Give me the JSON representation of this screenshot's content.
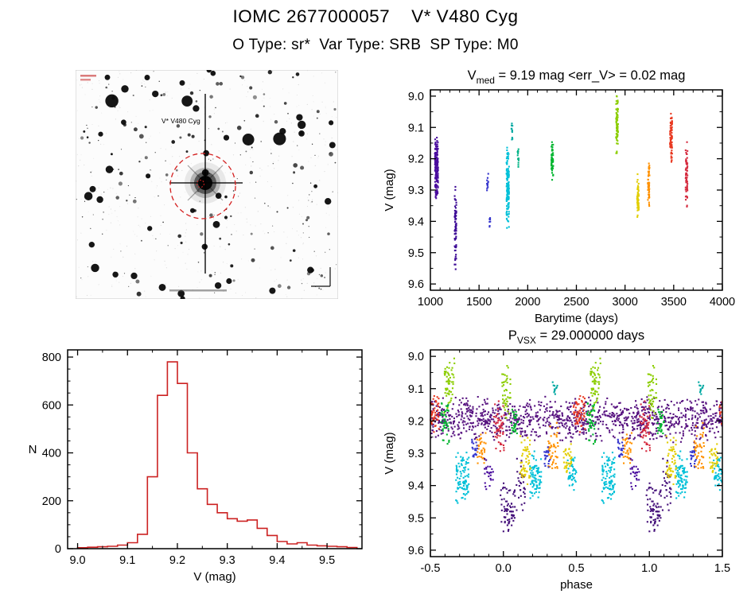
{
  "header": {
    "title": "IOMC 2677000057    V* V480 Cyg",
    "subtitle": "O Type: sr*  Var Type: SRB  SP Type: M0"
  },
  "finder_chart": {
    "target_label": "V* V480 Cyg",
    "star_count": 250,
    "seed": 11,
    "circle_color": "#d42020"
  },
  "chart_data": [
    {
      "id": "lightcurve",
      "type": "scatter",
      "seed": 101,
      "title_segments": [
        {
          "text": "V"
        },
        {
          "text": "med",
          "sub": true
        },
        {
          "text": " = 9.19 mag <err_V> = 0.02 mag"
        }
      ],
      "xlabel": "Barytime (days)",
      "ylabel": "V (mag)",
      "xlim": [
        1000,
        4000
      ],
      "ylim": [
        8.98,
        9.62
      ],
      "xticks": [
        1000,
        1500,
        2000,
        2500,
        3000,
        3500,
        4000
      ],
      "xtick_labels": [
        "1000",
        "1500",
        "2000",
        "2500",
        "3000",
        "3500",
        "4000"
      ],
      "yticks": [
        9.0,
        9.1,
        9.2,
        9.3,
        9.4,
        9.5,
        9.6
      ],
      "ytick_labels": [
        "9.0",
        "9.1",
        "9.2",
        "9.3",
        "9.4",
        "9.5",
        "9.6"
      ],
      "x_minor": 5,
      "y_minor": 2,
      "clusters": [
        {
          "x": 1063,
          "xw": 16,
          "v0": 9.12,
          "v1": 9.33,
          "n": 170,
          "color": "#4a0d9e"
        },
        {
          "x": 1258,
          "xw": 9,
          "v0": 9.28,
          "v1": 9.56,
          "n": 70,
          "color": "#3d0b96"
        },
        {
          "x": 1588,
          "xw": 7,
          "v0": 9.24,
          "v1": 9.31,
          "n": 12,
          "color": "#3333cc"
        },
        {
          "x": 1612,
          "xw": 5,
          "v0": 9.37,
          "v1": 9.43,
          "n": 8,
          "color": "#3333cc"
        },
        {
          "x": 1795,
          "xw": 13,
          "v0": 9.14,
          "v1": 9.45,
          "n": 130,
          "color": "#00c0d8"
        },
        {
          "x": 1838,
          "xw": 6,
          "v0": 9.08,
          "v1": 9.14,
          "n": 12,
          "color": "#00a9a2"
        },
        {
          "x": 1902,
          "xw": 6,
          "v0": 9.16,
          "v1": 9.24,
          "n": 16,
          "color": "#00b386"
        },
        {
          "x": 2252,
          "xw": 10,
          "v0": 9.13,
          "v1": 9.27,
          "n": 50,
          "color": "#00b52e"
        },
        {
          "x": 2918,
          "xw": 11,
          "v0": 8.99,
          "v1": 9.21,
          "n": 75,
          "color": "#8bcd00"
        },
        {
          "x": 3132,
          "xw": 10,
          "v0": 9.24,
          "v1": 9.41,
          "n": 55,
          "color": "#e2ce00"
        },
        {
          "x": 3243,
          "xw": 9,
          "v0": 9.2,
          "v1": 9.36,
          "n": 48,
          "color": "#ff9100"
        },
        {
          "x": 3473,
          "xw": 11,
          "v0": 9.04,
          "v1": 9.22,
          "n": 75,
          "color": "#e93a22"
        },
        {
          "x": 3632,
          "xw": 10,
          "v0": 9.14,
          "v1": 9.36,
          "n": 62,
          "color": "#d52a3e"
        }
      ]
    },
    {
      "id": "histogram",
      "type": "histogram",
      "color": "#cc2222",
      "xlabel": "V (mag)",
      "ylabel": "N",
      "xlim": [
        8.98,
        9.57
      ],
      "ylim": [
        830,
        0
      ],
      "xticks": [
        9.0,
        9.1,
        9.2,
        9.3,
        9.4,
        9.5
      ],
      "xtick_labels": [
        "9.0",
        "9.1",
        "9.2",
        "9.3",
        "9.4",
        "9.5"
      ],
      "yticks": [
        0,
        200,
        400,
        600,
        800
      ],
      "ytick_labels": [
        "0",
        "200",
        "400",
        "600",
        "800"
      ],
      "x_minor": 2,
      "y_minor": 4,
      "bin_width": 0.02,
      "bins": [
        {
          "x": 9.0,
          "n": 4
        },
        {
          "x": 9.02,
          "n": 6
        },
        {
          "x": 9.04,
          "n": 8
        },
        {
          "x": 9.06,
          "n": 10
        },
        {
          "x": 9.08,
          "n": 15
        },
        {
          "x": 9.1,
          "n": 25
        },
        {
          "x": 9.12,
          "n": 60
        },
        {
          "x": 9.14,
          "n": 300
        },
        {
          "x": 9.16,
          "n": 640
        },
        {
          "x": 9.18,
          "n": 780
        },
        {
          "x": 9.2,
          "n": 690
        },
        {
          "x": 9.22,
          "n": 400
        },
        {
          "x": 9.24,
          "n": 250
        },
        {
          "x": 9.26,
          "n": 185
        },
        {
          "x": 9.28,
          "n": 150
        },
        {
          "x": 9.3,
          "n": 125
        },
        {
          "x": 9.32,
          "n": 115
        },
        {
          "x": 9.34,
          "n": 120
        },
        {
          "x": 9.36,
          "n": 85
        },
        {
          "x": 9.38,
          "n": 55
        },
        {
          "x": 9.4,
          "n": 30
        },
        {
          "x": 9.42,
          "n": 20
        },
        {
          "x": 9.44,
          "n": 25
        },
        {
          "x": 9.46,
          "n": 15
        },
        {
          "x": 9.48,
          "n": 12
        },
        {
          "x": 9.5,
          "n": 10
        },
        {
          "x": 9.52,
          "n": 8
        },
        {
          "x": 9.54,
          "n": 5
        }
      ]
    },
    {
      "id": "phase",
      "type": "scatter",
      "seed": 202,
      "period_mirror": 1.0,
      "title_segments": [
        {
          "text": "P"
        },
        {
          "text": "VSX",
          "sub": true
        },
        {
          "text": " = 29.000000 days"
        }
      ],
      "xlabel": "phase",
      "ylabel": "V (mag)",
      "xlim": [
        -0.5,
        1.5
      ],
      "ylim": [
        8.98,
        9.62
      ],
      "xticks": [
        -0.5,
        0.0,
        0.5,
        1.0,
        1.5
      ],
      "xtick_labels": [
        "-0.5",
        "0.0",
        "0.5",
        "1.0",
        "1.5"
      ],
      "yticks": [
        9.0,
        9.1,
        9.2,
        9.3,
        9.4,
        9.5,
        9.6
      ],
      "ytick_labels": [
        "9.0",
        "9.1",
        "9.2",
        "9.3",
        "9.4",
        "9.5",
        "9.6"
      ],
      "x_minor": 5,
      "y_minor": 2,
      "clusters": [
        {
          "x": 0.5,
          "xw": 1.02,
          "v0": 9.12,
          "v1": 9.27,
          "n": 1150,
          "color": "#571380",
          "mirror": false
        },
        {
          "x": 0.03,
          "xw": 0.05,
          "v0": 9.38,
          "v1": 9.56,
          "n": 70,
          "color": "#44107a"
        },
        {
          "x": 0.12,
          "xw": 0.03,
          "v0": 9.3,
          "v1": 9.48,
          "n": 30,
          "color": "#44107a"
        },
        {
          "x": 0.72,
          "xw": 0.045,
          "v0": 9.28,
          "v1": 9.46,
          "n": 90,
          "color": "#00c0d8"
        },
        {
          "x": 0.22,
          "xw": 0.04,
          "v0": 9.29,
          "v1": 9.45,
          "n": 80,
          "color": "#00c0d8"
        },
        {
          "x": 0.47,
          "xw": 0.03,
          "v0": 9.3,
          "v1": 9.42,
          "n": 40,
          "color": "#00c0d8"
        },
        {
          "x": 0.63,
          "xw": 0.035,
          "v0": 8.99,
          "v1": 9.18,
          "n": 55,
          "color": "#8bcd00"
        },
        {
          "x": 0.02,
          "xw": 0.03,
          "v0": 9.02,
          "v1": 9.2,
          "n": 45,
          "color": "#8bcd00"
        },
        {
          "x": 0.15,
          "xw": 0.035,
          "v0": 9.24,
          "v1": 9.4,
          "n": 55,
          "color": "#e2ce00"
        },
        {
          "x": 0.44,
          "xw": 0.03,
          "v0": 9.26,
          "v1": 9.38,
          "n": 35,
          "color": "#e2ce00"
        },
        {
          "x": 0.34,
          "xw": 0.035,
          "v0": 9.2,
          "v1": 9.37,
          "n": 50,
          "color": "#ff9100"
        },
        {
          "x": 0.85,
          "xw": 0.03,
          "v0": 9.22,
          "v1": 9.35,
          "n": 35,
          "color": "#ff9100"
        },
        {
          "x": 0.52,
          "xw": 0.04,
          "v0": 9.11,
          "v1": 9.24,
          "n": 60,
          "color": "#e93a22"
        },
        {
          "x": 0.97,
          "xw": 0.035,
          "v0": 9.13,
          "v1": 9.3,
          "n": 50,
          "color": "#d52a3e"
        },
        {
          "x": 0.6,
          "xw": 0.03,
          "v0": 9.14,
          "v1": 9.28,
          "n": 40,
          "color": "#00b52e"
        },
        {
          "x": 0.08,
          "xw": 0.025,
          "v0": 9.15,
          "v1": 9.26,
          "n": 30,
          "color": "#00b52e"
        },
        {
          "x": 0.3,
          "xw": 0.02,
          "v0": 9.26,
          "v1": 9.35,
          "n": 20,
          "color": "#3333cc"
        },
        {
          "x": 0.8,
          "xw": 0.02,
          "v0": 9.25,
          "v1": 9.33,
          "n": 18,
          "color": "#3333cc"
        },
        {
          "x": 0.35,
          "xw": 0.02,
          "v0": 9.07,
          "v1": 9.13,
          "n": 12,
          "color": "#00a9a2"
        },
        {
          "x": 0.9,
          "xw": 0.03,
          "v0": 9.3,
          "v1": 9.45,
          "n": 25,
          "color": "#4a0d9e"
        }
      ]
    }
  ]
}
